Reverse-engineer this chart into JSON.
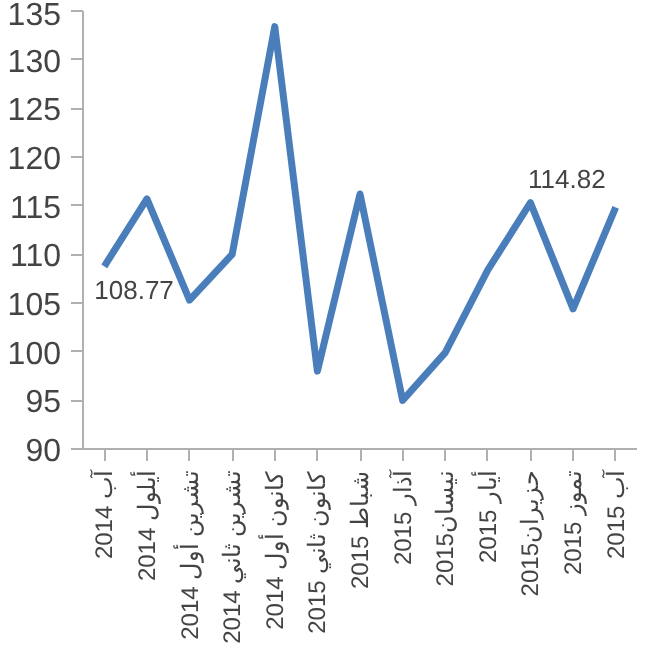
{
  "chart_data": {
    "type": "line",
    "categories": [
      "آب 2014",
      "أيلول 2014",
      "تشرين أول 2014",
      "تشرين ثاني 2014",
      "كانون أول 2014",
      "كانون ثاني 2015",
      "شباط 2015",
      "آذار 2015",
      "نيسان2015",
      "أيار 2015",
      "حزيران2015",
      "تموز 2015",
      "آب 2015"
    ],
    "series": [
      {
        "color": "#4a7ebb",
        "values": [
          108.77,
          115.7,
          105.3,
          110.0,
          133.4,
          98.0,
          116.2,
          95.0,
          99.9,
          108.4,
          115.3,
          104.4,
          114.82
        ],
        "value_labels": [
          "108.77",
          null,
          null,
          null,
          null,
          null,
          null,
          null,
          null,
          null,
          null,
          null,
          "114.82"
        ]
      }
    ],
    "ylim": [
      90,
      135
    ],
    "yticks": [
      90,
      95,
      100,
      105,
      110,
      115,
      120,
      125,
      130,
      135
    ],
    "grid": false,
    "marker": "none",
    "line_style": "solid"
  }
}
